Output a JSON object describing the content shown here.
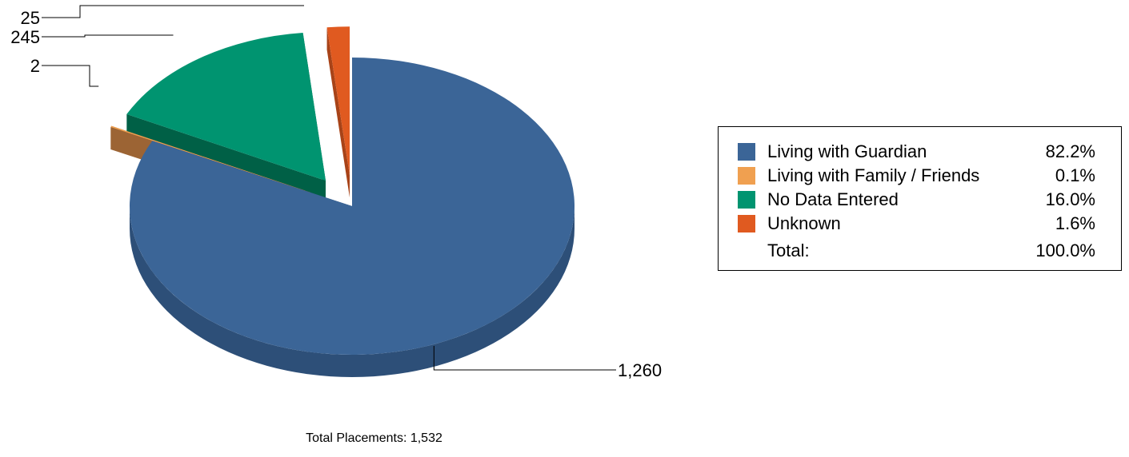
{
  "chart_data": {
    "type": "pie",
    "categories": [
      "Living with Guardian",
      "Living with Family / Friends",
      "No Data Entered",
      "Unknown"
    ],
    "values": [
      1260,
      2,
      245,
      25
    ],
    "percentages": [
      "82.2%",
      "0.1%",
      "16.0%",
      "1.6%"
    ],
    "data_labels": [
      "1,260",
      "2",
      "245",
      "25"
    ],
    "colors": [
      "#3b6597",
      "#f0a050",
      "#009470",
      "#e05a20"
    ],
    "side_colors": [
      "#2d4f78",
      "#9c6434",
      "#006046",
      "#a84318"
    ],
    "legend": {
      "position": "right",
      "total_label": "Total:",
      "total_pct": "100.0%"
    },
    "footer": "Total Placements: 1,532",
    "style": "3d-exploded"
  }
}
